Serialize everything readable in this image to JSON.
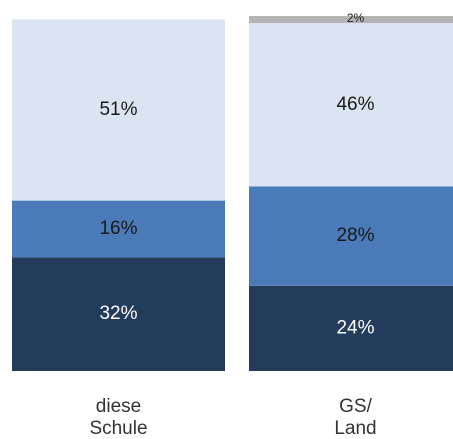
{
  "chart_data": {
    "type": "bar",
    "stacked": true,
    "categories": [
      "diese\nSchule",
      "GS/\nLand"
    ],
    "series": [
      {
        "values": [
          32,
          24
        ],
        "color": "#243c5c"
      },
      {
        "values": [
          16,
          28
        ],
        "color": "#4a7ab8"
      },
      {
        "values": [
          51,
          46
        ],
        "color": "#dbe4f1"
      },
      {
        "values": [
          0,
          2
        ],
        "color": "#b4b4b4"
      }
    ],
    "labels": [
      [
        "32%",
        "16%",
        "51%",
        ""
      ],
      [
        "24%",
        "28%",
        "46%",
        "2%"
      ]
    ],
    "ylim": [
      0,
      100
    ]
  }
}
